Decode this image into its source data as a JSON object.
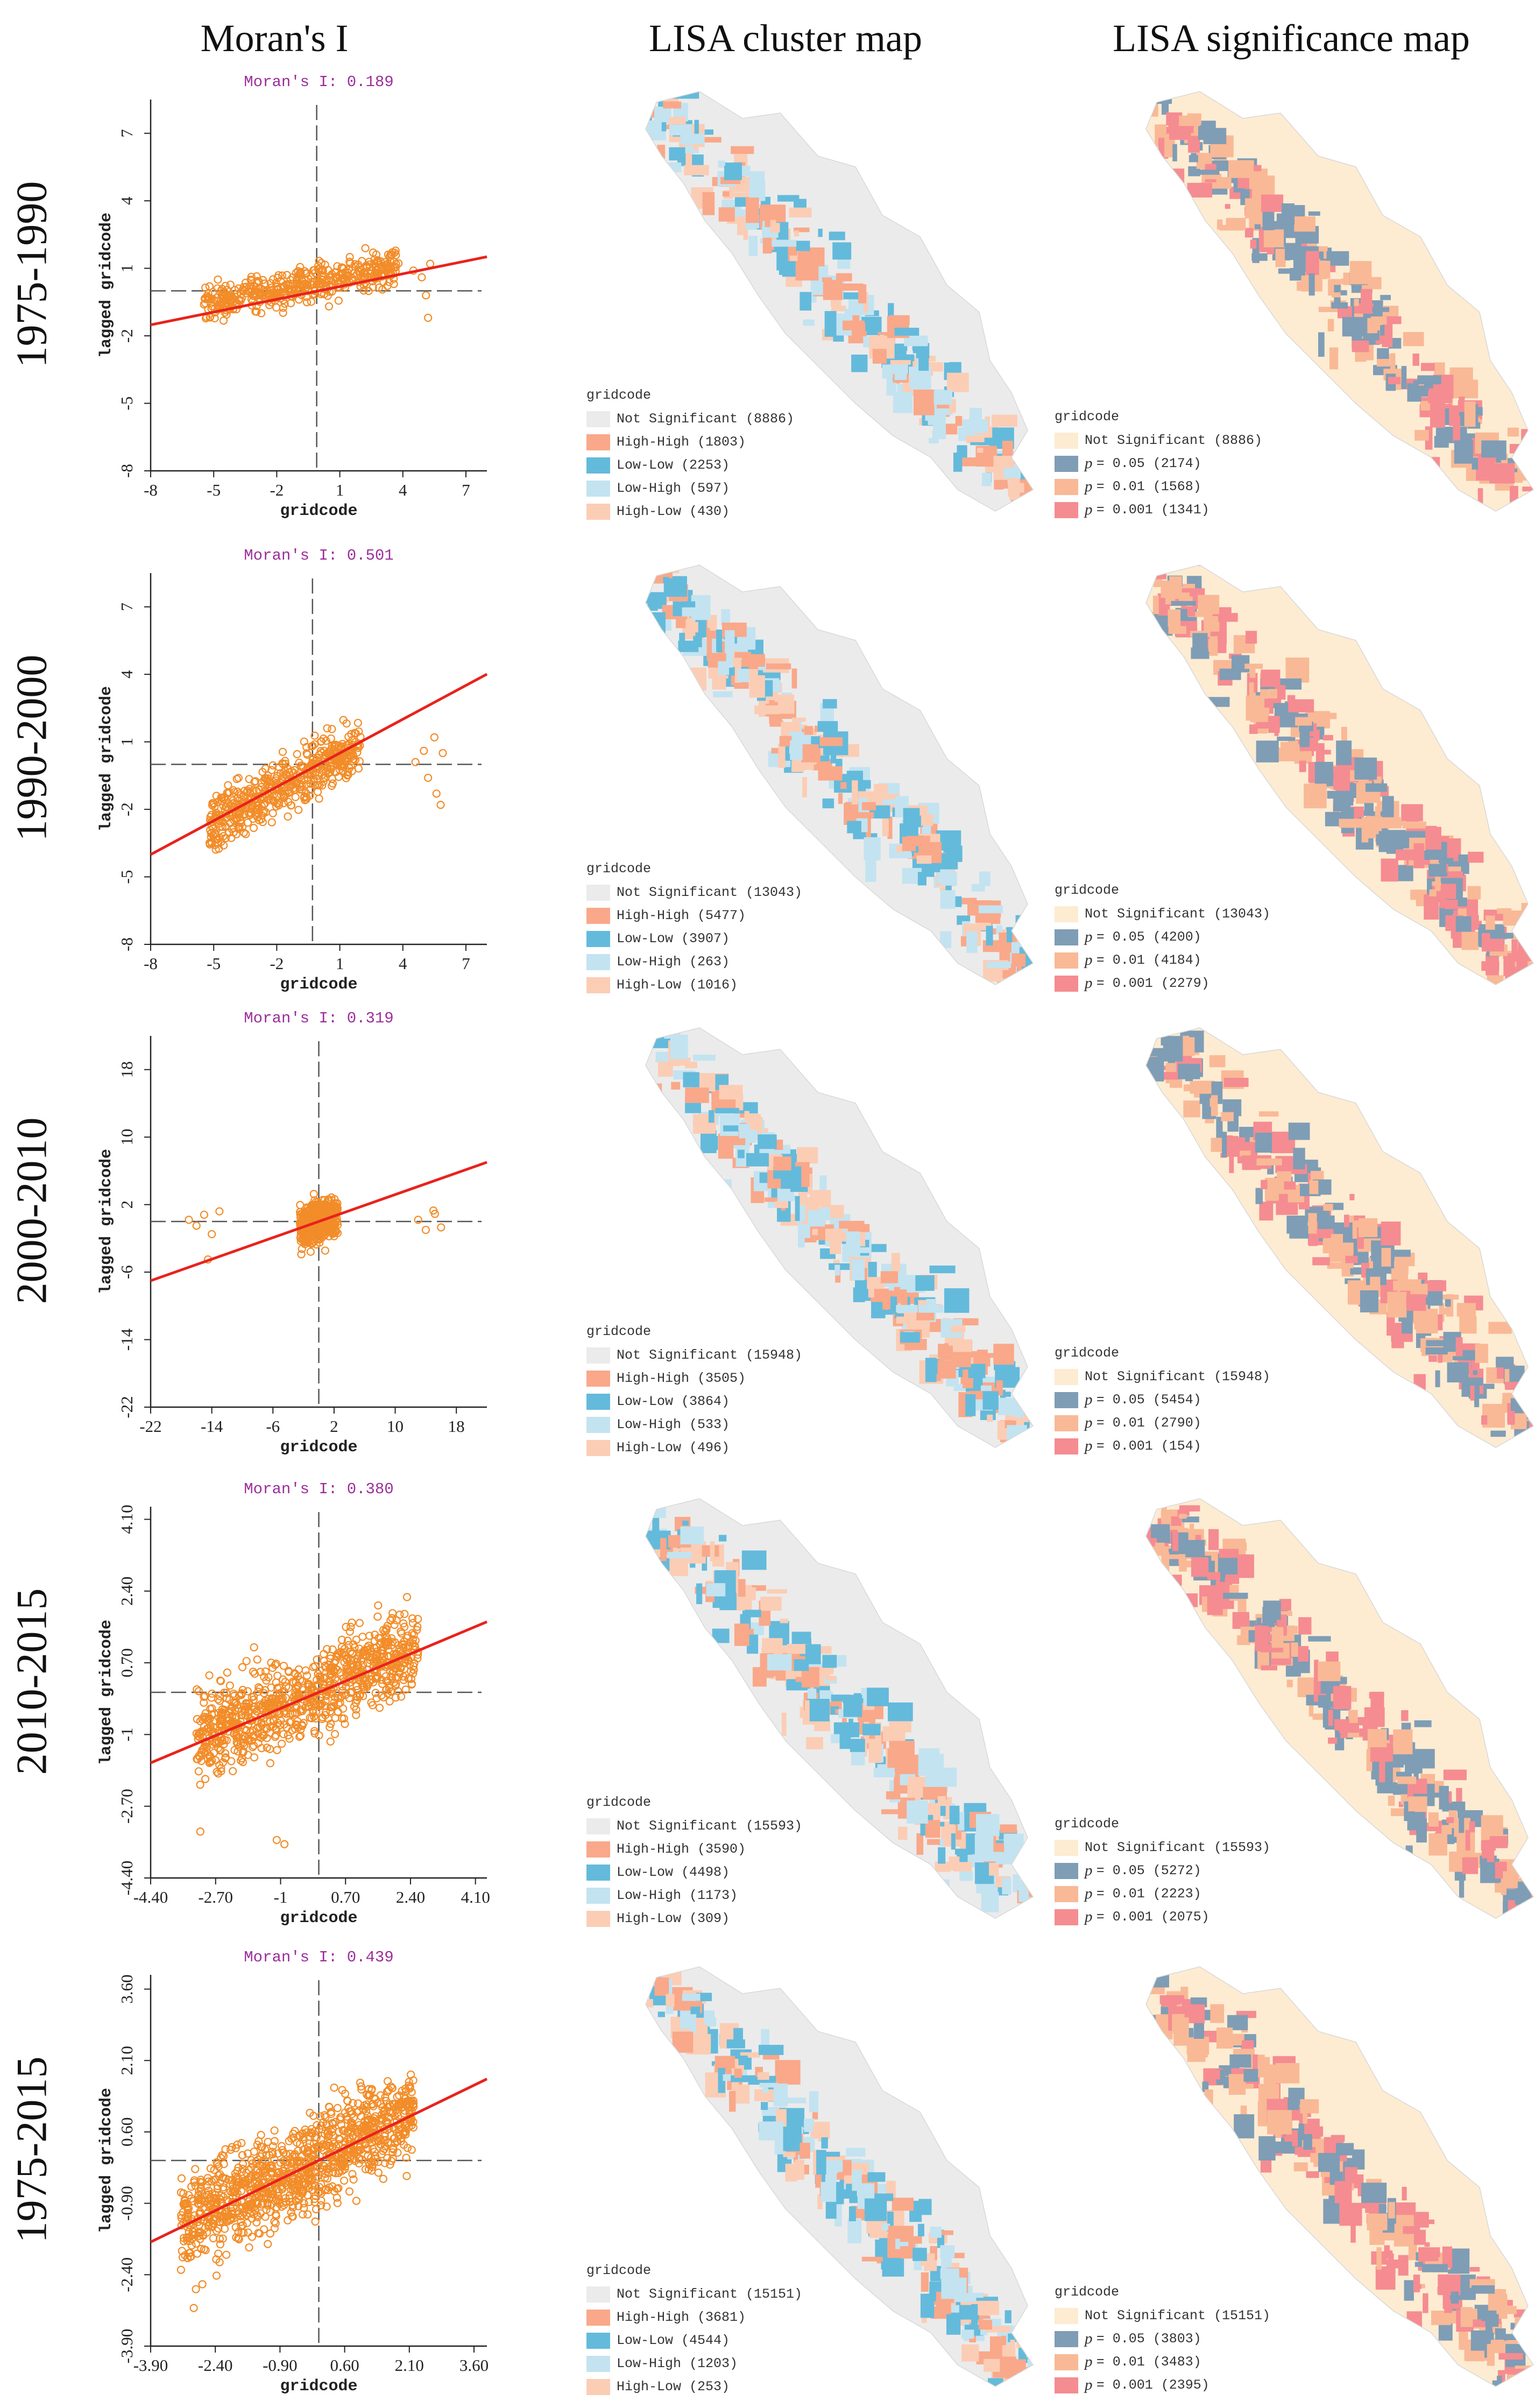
{
  "headers": [
    "Moran's I",
    "LISA cluster map",
    "LISA significance map"
  ],
  "colors": {
    "point": "#F28C28",
    "fit": "#E8231E",
    "moran_text": "#9B2E9B",
    "not_significant": "#EBEBEB",
    "high_high": "#F9A98A",
    "low_low": "#63BADB",
    "low_high": "#C4E3F0",
    "high_low": "#FCCDB5",
    "sig_not": "#FDEBD2",
    "p05": "#7F9DB5",
    "p01": "#F9B896",
    "p001": "#F48C91"
  },
  "rows": [
    {
      "period": "1975-1990",
      "moran_label": "Moran's I: 0.189",
      "legend_title": "gridcode",
      "cluster_legend": [
        "Not Significant (8886)",
        "High-High (1803)",
        "Low-Low (2253)",
        "Low-High (597)",
        "High-Low (430)"
      ],
      "sig_legend": [
        "Not Significant (8886)",
        "= 0.05 (2174)",
        "= 0.01 (1568)",
        "= 0.001 (1341)"
      ]
    },
    {
      "period": "1990-2000",
      "moran_label": "Moran's I: 0.501",
      "legend_title": "gridcode",
      "cluster_legend": [
        "Not Significant (13043)",
        "High-High (5477)",
        "Low-Low (3907)",
        "Low-High (263)",
        "High-Low (1016)"
      ],
      "sig_legend": [
        "Not Significant (13043)",
        "= 0.05 (4200)",
        "= 0.01 (4184)",
        "= 0.001 (2279)"
      ]
    },
    {
      "period": "2000-2010",
      "moran_label": "Moran's I: 0.319",
      "legend_title": "gridcode",
      "cluster_legend": [
        "Not Significant (15948)",
        "High-High (3505)",
        "Low-Low (3864)",
        "Low-High (533)",
        "High-Low (496)"
      ],
      "sig_legend": [
        "Not Significant (15948)",
        "= 0.05 (5454)",
        "= 0.01 (2790)",
        "= 0.001 (154)"
      ]
    },
    {
      "period": "2010-2015",
      "moran_label": "Moran's I: 0.380",
      "legend_title": "gridcode",
      "cluster_legend": [
        "Not Significant (15593)",
        "High-High (3590)",
        "Low-Low (4498)",
        "Low-High (1173)",
        "High-Low (309)"
      ],
      "sig_legend": [
        "Not Significant (15593)",
        "= 0.05 (5272)",
        "= 0.01 (2223)",
        "= 0.001 (2075)"
      ]
    },
    {
      "period": "1975-2015",
      "moran_label": "Moran's I: 0.439",
      "legend_title": "gridcode",
      "cluster_legend": [
        "Not Significant (15151)",
        "High-High (3681)",
        "Low-Low (4544)",
        "Low-High (1203)",
        "High-Low (253)"
      ],
      "sig_legend": [
        "Not Significant (15151)",
        "= 0.05 (3803)",
        "= 0.01 (3483)",
        "= 0.001 (2395)"
      ]
    }
  ],
  "chart_data": [
    {
      "type": "scatter",
      "title": "Moran's I: 0.189",
      "xlabel": "gridcode",
      "ylabel": "lagged gridcode",
      "xlim": [
        -8,
        8
      ],
      "ylim": [
        -8,
        8.5
      ],
      "xticks": [
        "-8",
        "-5",
        "-2",
        "1",
        "4",
        "7"
      ],
      "yticks": [
        "-8",
        "-5",
        "-2",
        "1",
        "4",
        "7"
      ],
      "xtick_values": [
        -8,
        -5,
        -2,
        1,
        4,
        7
      ],
      "ytick_values": [
        -8,
        -5,
        -2,
        1,
        4,
        7
      ],
      "slope": 0.189,
      "mean_x": -0.1,
      "mean_y": 0,
      "cloud": {
        "x_min": -5.5,
        "x_max": 3.8,
        "y_mean": 0.4,
        "y_spread": 1.4
      },
      "outliers": [
        [
          -5.2,
          0.2
        ],
        [
          -5,
          -0.4
        ],
        [
          -4.8,
          0.5
        ],
        [
          4.9,
          0.6
        ],
        [
          5.1,
          -0.2
        ],
        [
          5.3,
          1.2
        ],
        [
          5.2,
          -1.2
        ],
        [
          4.5,
          0.9
        ]
      ],
      "point_count": 450
    },
    {
      "type": "scatter",
      "title": "Moran's I: 0.501",
      "xlabel": "gridcode",
      "ylabel": "lagged gridcode",
      "xlim": [
        -8,
        8
      ],
      "ylim": [
        -8,
        8.5
      ],
      "xticks": [
        "-8",
        "-5",
        "-2",
        "1",
        "4",
        "7"
      ],
      "yticks": [
        "-8",
        "-5",
        "-2",
        "1",
        "4",
        "7"
      ],
      "xtick_values": [
        -8,
        -5,
        -2,
        1,
        4,
        7
      ],
      "ytick_values": [
        -8,
        -5,
        -2,
        1,
        4,
        7
      ],
      "slope": 0.501,
      "mean_x": -0.3,
      "mean_y": 0,
      "cloud": {
        "x_min": -5.2,
        "x_max": 2.0,
        "y_mean": -0.1,
        "y_spread": 2.2
      },
      "outliers": [
        [
          5,
          0.6
        ],
        [
          5.2,
          -0.6
        ],
        [
          5.5,
          1.2
        ],
        [
          5.6,
          -1.3
        ],
        [
          5.8,
          -1.8
        ],
        [
          4.6,
          0.1
        ],
        [
          5.9,
          0.5
        ]
      ],
      "point_count": 520
    },
    {
      "type": "scatter",
      "title": "Moran's I: 0.319",
      "xlabel": "gridcode",
      "ylabel": "lagged gridcode",
      "xlim": [
        -22,
        22
      ],
      "ylim": [
        -22,
        22
      ],
      "xticks": [
        "-22",
        "-14",
        "-6",
        "2",
        "10",
        "18"
      ],
      "yticks": [
        "-22",
        "-14",
        "-6",
        "2",
        "10",
        "18"
      ],
      "xtick_values": [
        -22,
        -14,
        -6,
        2,
        10,
        18
      ],
      "ytick_values": [
        -22,
        -14,
        -6,
        2,
        10,
        18
      ],
      "slope": 0.319,
      "mean_x": 0,
      "mean_y": 0,
      "cloud": {
        "x_min": -2.5,
        "x_max": 2.5,
        "y_mean": 0,
        "y_spread": 4.5
      },
      "outliers": [
        [
          -17,
          0.2
        ],
        [
          -16,
          -0.5
        ],
        [
          -15,
          0.8
        ],
        [
          -14,
          -1.5
        ],
        [
          -13,
          1.2
        ],
        [
          -14.5,
          -4.5
        ],
        [
          13,
          0.2
        ],
        [
          14,
          -1
        ],
        [
          15,
          1.3
        ],
        [
          16,
          -0.7
        ],
        [
          15.2,
          0.9
        ]
      ],
      "point_count": 360
    },
    {
      "type": "scatter",
      "title": "Moran's I: 0.380",
      "xlabel": "gridcode",
      "ylabel": "lagged gridcode",
      "xlim": [
        -4.4,
        4.4
      ],
      "ylim": [
        -4.4,
        4.4
      ],
      "xticks": [
        "-4.40",
        "-2.70",
        "-1",
        "0.70",
        "2.40",
        "4.10"
      ],
      "yticks": [
        "-4.40",
        "-2.70",
        "-1",
        "0.70",
        "2.40",
        "4.10"
      ],
      "xtick_values": [
        -4.4,
        -2.7,
        -1,
        0.7,
        2.4,
        4.1
      ],
      "ytick_values": [
        -4.4,
        -2.7,
        -1,
        0.7,
        2.4,
        4.1
      ],
      "slope": 0.38,
      "mean_x": 0,
      "mean_y": 0,
      "cloud": {
        "x_min": -3.2,
        "x_max": 2.6,
        "y_mean": 0.1,
        "y_spread": 1.9
      },
      "outliers": [
        [
          -3.1,
          -3.3
        ],
        [
          -1.1,
          -3.5
        ],
        [
          -0.9,
          -3.6
        ]
      ],
      "point_count": 900
    },
    {
      "type": "scatter",
      "title": "Moran's I: 0.439",
      "xlabel": "gridcode",
      "ylabel": "lagged gridcode",
      "xlim": [
        -3.9,
        3.9
      ],
      "ylim": [
        -3.9,
        3.9
      ],
      "xticks": [
        "-3.90",
        "-2.40",
        "-0.90",
        "0.60",
        "2.10",
        "3.60"
      ],
      "yticks": [
        "-3.90",
        "-2.40",
        "-0.90",
        "0.60",
        "2.10",
        "3.60"
      ],
      "xtick_values": [
        -3.9,
        -2.4,
        -0.9,
        0.6,
        2.1,
        3.6
      ],
      "ytick_values": [
        -3.9,
        -2.4,
        -0.9,
        0.6,
        2.1,
        3.6
      ],
      "slope": 0.439,
      "mean_x": 0,
      "mean_y": 0,
      "cloud": {
        "x_min": -3.2,
        "x_max": 2.2,
        "y_mean": 0.05,
        "y_spread": 1.7
      },
      "outliers": [
        [
          -2.7,
          -2.6
        ],
        [
          -2.9,
          -3.1
        ]
      ],
      "point_count": 1100
    }
  ]
}
